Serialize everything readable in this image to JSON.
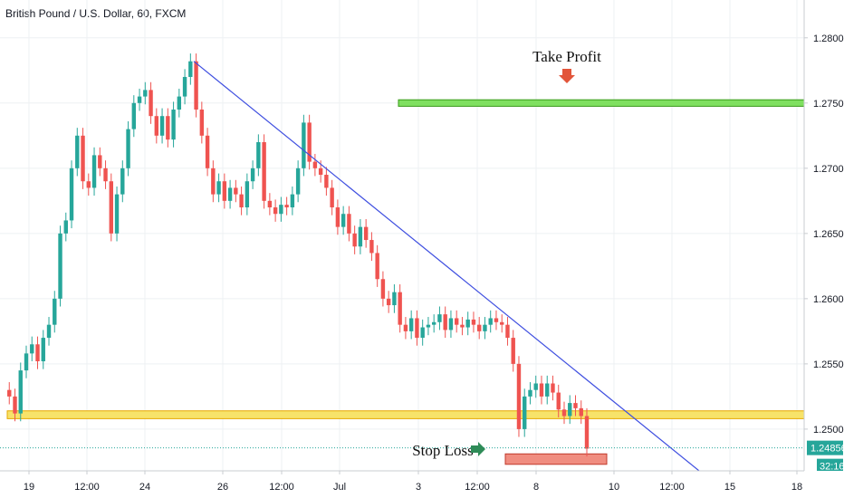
{
  "header": {
    "title": "British Pound / U.S. Dollar, 60, FXCM"
  },
  "chart_data": {
    "type": "candlestick",
    "title": "British Pound / U.S. Dollar, 60, FXCM",
    "ylim": [
      1.2468,
      1.2829
    ],
    "y_ticks": [
      "1.28000",
      "1.27500",
      "1.27000",
      "1.26500",
      "1.26000",
      "1.25500",
      "1.25000"
    ],
    "x_ticks": [
      "19",
      "12:00",
      "24",
      "26",
      "12:00",
      "Jul",
      "3",
      "12:00",
      "8",
      "10",
      "12:00",
      "15",
      "18"
    ],
    "grid": true,
    "price_label": "1.24856",
    "price_value": 1.24856,
    "countdown": "32:16",
    "colors": {
      "up": "#26a69a",
      "down": "#ef5350",
      "trendline": "#3f4fe0",
      "current_price_line": "#26a69a"
    },
    "annotations": [
      {
        "type": "horizontal_zone",
        "name": "take-profit-zone",
        "from": 1.27475,
        "to": 1.27525,
        "fill": "#7fe060",
        "stroke": "#3a9a1a"
      },
      {
        "type": "horizontal_zone",
        "name": "support-zone",
        "from": 1.2508,
        "to": 1.2514,
        "fill": "#f7e36a",
        "stroke": "#e6a800"
      },
      {
        "type": "horizontal_zone",
        "name": "stop-loss-zone",
        "from": 1.2473,
        "to": 1.2481,
        "fill": "#f08d80",
        "stroke": "#c0392b"
      },
      {
        "type": "trendline",
        "name": "downtrend-line",
        "from_price": 1.2782,
        "to_price": 1.2468
      },
      {
        "type": "label",
        "name": "take-profit-label",
        "text": "Take Profit",
        "arrow": "down",
        "arrow_color": "#e2553a"
      },
      {
        "type": "label",
        "name": "stop-loss-label",
        "text": "Stop Loss",
        "arrow": "right",
        "arrow_color": "#2e8b57"
      }
    ],
    "ohlc_points": [
      1.253,
      1.2525,
      1.2512,
      1.2545,
      1.2558,
      1.2565,
      1.2552,
      1.257,
      1.258,
      1.26,
      1.265,
      1.266,
      1.27,
      1.2725,
      1.269,
      1.2685,
      1.271,
      1.27,
      1.269,
      1.265,
      1.268,
      1.27,
      1.273,
      1.275,
      1.2755,
      1.276,
      1.274,
      1.2725,
      1.274,
      1.2722,
      1.2745,
      1.2755,
      1.277,
      1.2782,
      1.2745,
      1.2725,
      1.27,
      1.268,
      1.269,
      1.2675,
      1.2685,
      1.268,
      1.267,
      1.269,
      1.27,
      1.272,
      1.2675,
      1.267,
      1.2665,
      1.2672,
      1.267,
      1.268,
      1.27,
      1.2735,
      1.2705,
      1.27,
      1.2695,
      1.2685,
      1.267,
      1.2655,
      1.2665,
      1.265,
      1.264,
      1.2655,
      1.2645,
      1.2635,
      1.2615,
      1.26,
      1.2595,
      1.2605,
      1.258,
      1.2575,
      1.2585,
      1.257,
      1.2578,
      1.258,
      1.2582,
      1.2588,
      1.2576,
      1.2585,
      1.258,
      1.2578,
      1.2584,
      1.258,
      1.2575,
      1.258,
      1.2585,
      1.2582,
      1.258,
      1.257,
      1.255,
      1.25,
      1.2525,
      1.253,
      1.2535,
      1.2525,
      1.2535,
      1.2528,
      1.2515,
      1.251,
      1.252,
      1.2516,
      1.251,
      1.2485
    ]
  }
}
